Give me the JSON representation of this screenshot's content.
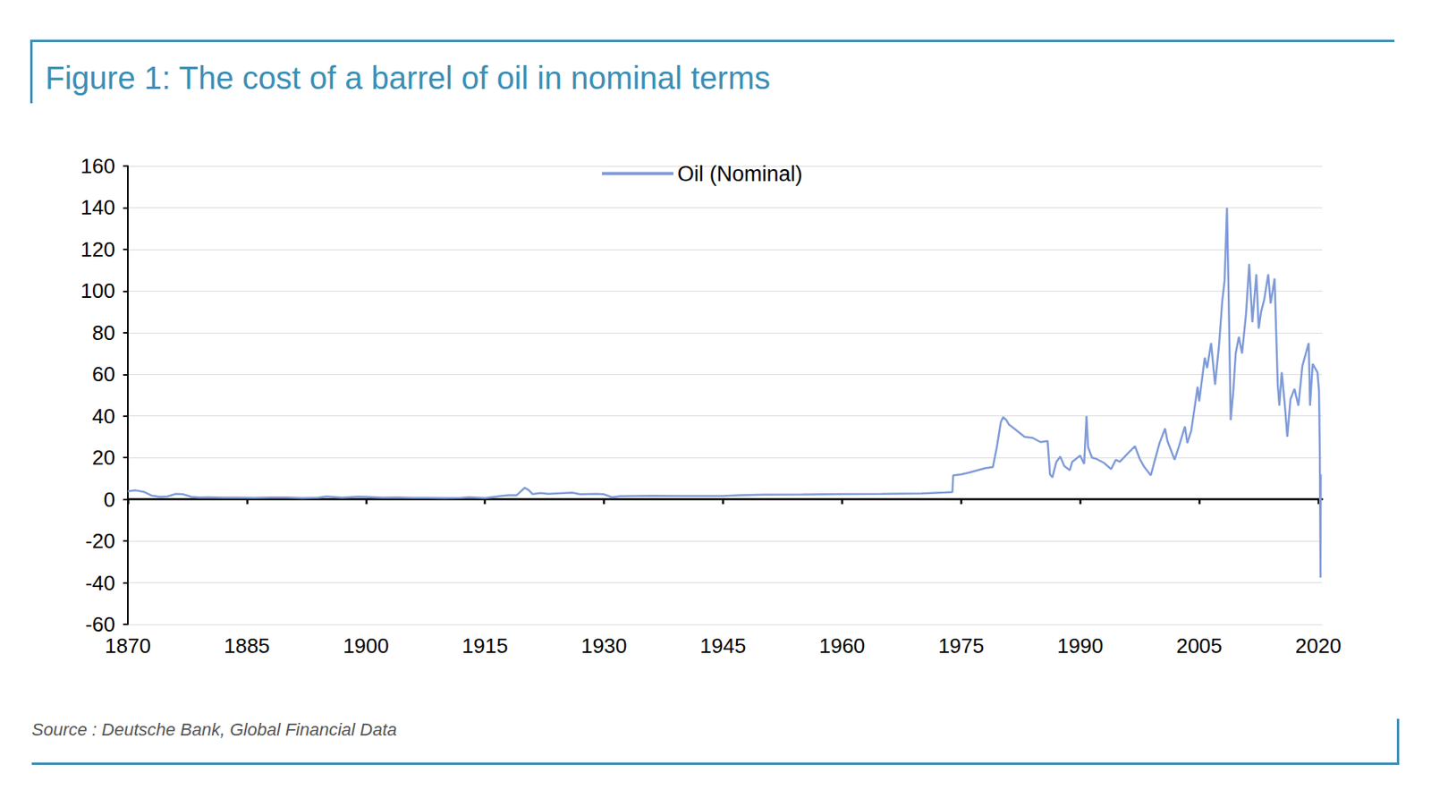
{
  "chart_data": {
    "type": "line",
    "title": "Figure 1: The cost of a barrel of oil in nominal terms",
    "source": "Source : Deutsche Bank, Global Financial Data",
    "x": [
      1870,
      1871,
      1872,
      1873,
      1874,
      1875,
      1876,
      1877,
      1878,
      1879,
      1880,
      1882,
      1884,
      1886,
      1888,
      1890,
      1892,
      1894,
      1895,
      1897,
      1899,
      1900,
      1902,
      1904,
      1906,
      1908,
      1910,
      1912,
      1913,
      1915,
      1916,
      1917,
      1918,
      1919,
      1920,
      1920.5,
      1921,
      1922,
      1923,
      1925,
      1926,
      1927,
      1929,
      1930,
      1931,
      1932,
      1934,
      1936,
      1940,
      1945,
      1947,
      1950,
      1955,
      1960,
      1965,
      1970,
      1973,
      1973.9,
      1974,
      1975,
      1976,
      1977,
      1978,
      1979,
      1979.5,
      1980,
      1980.3,
      1980.7,
      1981,
      1982,
      1983,
      1984,
      1985,
      1985.9,
      1986.2,
      1986.5,
      1987,
      1987.5,
      1988,
      1988.7,
      1989,
      1989.5,
      1990,
      1990.5,
      1990.8,
      1991,
      1991.5,
      1992,
      1993,
      1993.9,
      1994.5,
      1995,
      1996,
      1996.9,
      1997.5,
      1998,
      1998.9,
      1999.5,
      2000,
      2000.7,
      2001,
      2001.9,
      2002.5,
      2003.2,
      2003.5,
      2004,
      2004.8,
      2005,
      2005.7,
      2006,
      2006.5,
      2007,
      2007.5,
      2007.9,
      2008.2,
      2008.5,
      2008.7,
      2008.97,
      2009.3,
      2009.6,
      2010,
      2010.4,
      2010.9,
      2011.3,
      2011.7,
      2012.2,
      2012.5,
      2012.8,
      2013.2,
      2013.7,
      2014,
      2014.5,
      2014.9,
      2015.1,
      2015.4,
      2015.8,
      2016.1,
      2016.5,
      2017,
      2017.5,
      2018,
      2018.8,
      2018.97,
      2019.3,
      2019.9,
      2020.1,
      2020.2,
      2020.29,
      2020.32
    ],
    "series": [
      {
        "name": "Oil (Nominal)",
        "color": "#7f9bd8",
        "values": [
          3.9,
          4.3,
          3.6,
          1.8,
          1.2,
          1.4,
          2.6,
          2.4,
          1.2,
          0.9,
          1.0,
          0.8,
          0.8,
          0.7,
          0.9,
          0.9,
          0.6,
          0.8,
          1.4,
          0.8,
          1.3,
          1.2,
          0.8,
          0.9,
          0.7,
          0.7,
          0.6,
          0.7,
          1.0,
          0.6,
          1.1,
          1.6,
          2.0,
          2.0,
          5.5,
          4.5,
          2.5,
          3.0,
          2.6,
          3.0,
          3.2,
          2.4,
          2.6,
          2.4,
          1.0,
          1.5,
          1.6,
          1.7,
          1.6,
          1.6,
          2.0,
          2.2,
          2.3,
          2.5,
          2.6,
          2.8,
          3.3,
          3.5,
          11.5,
          12,
          12.8,
          13.9,
          14.9,
          15.5,
          25,
          37,
          39.5,
          38,
          36,
          33,
          30,
          29.5,
          27.5,
          28,
          12,
          10.5,
          18,
          20.5,
          16,
          14,
          18,
          19.5,
          21,
          17,
          40,
          25,
          20,
          19.5,
          17.5,
          14.5,
          19,
          18,
          22,
          25.5,
          19.5,
          16,
          11.5,
          20,
          27,
          34,
          28,
          19,
          26,
          35,
          27,
          33,
          54,
          47,
          68,
          63,
          75,
          55,
          74,
          95,
          105,
          140,
          100,
          38,
          52,
          70,
          78,
          70,
          89,
          113,
          85,
          108,
          82,
          90,
          96,
          108,
          94,
          106,
          55,
          45,
          61,
          45,
          30,
          48,
          53,
          45,
          64,
          75,
          45,
          65,
          61,
          52,
          22,
          -37.6,
          12
        ]
      }
    ],
    "xlim": [
      1870,
      2020.5
    ],
    "xticks": [
      1870,
      1885,
      1900,
      1915,
      1930,
      1945,
      1960,
      1975,
      1990,
      2005,
      2020
    ],
    "ylim": [
      -60,
      160
    ],
    "yticks": [
      -60,
      -40,
      -20,
      0,
      20,
      40,
      60,
      80,
      100,
      120,
      140,
      160
    ],
    "grid": true,
    "legend": "top"
  }
}
